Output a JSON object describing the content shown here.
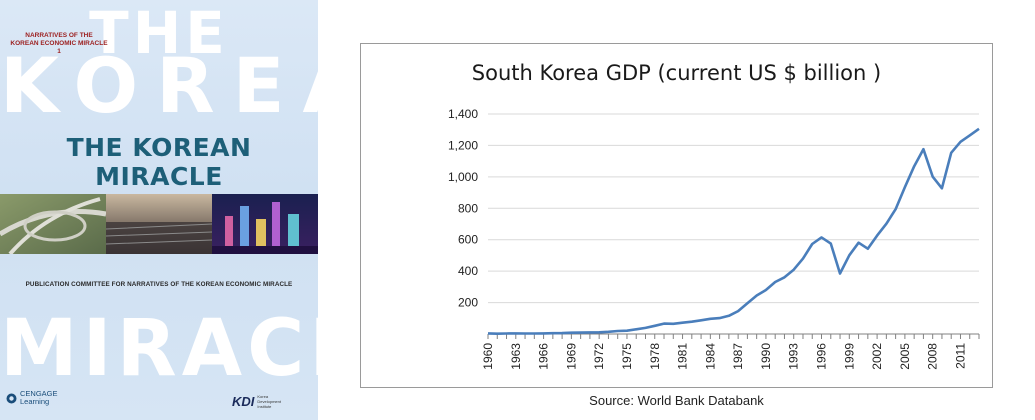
{
  "cover": {
    "big_the": "THE",
    "big_korean": "KOREAN",
    "series_line1": "NARRATIVES OF THE",
    "series_line2": "KOREAN ECONOMIC MIRACLE 1",
    "title": "THE KOREAN MIRACLE",
    "committee": "PUBLICATION COMMITTEE FOR NARRATIVES OF THE KOREAN ECONOMIC MIRACLE",
    "big_miracle": "MIRACLE",
    "publisher_line1": "CENGAGE",
    "publisher_line2": "Learning",
    "kdi_logo": "KDI",
    "kdi_sub": "Korea Development Institute"
  },
  "chart_data": {
    "type": "line",
    "title": "South Korea GDP (current US $ billion )",
    "xlabel": "",
    "ylabel": "",
    "ylim": [
      0,
      1400
    ],
    "yticks": [
      0,
      200,
      400,
      600,
      800,
      1000,
      1200,
      1400
    ],
    "ytick_labels": [
      "",
      "200",
      "400",
      "600",
      "800",
      "1,000",
      "1,200",
      "1,400"
    ],
    "xticks": [
      "1960",
      "1963",
      "1966",
      "1969",
      "1972",
      "1975",
      "1978",
      "1981",
      "1984",
      "1987",
      "1990",
      "1993",
      "1996",
      "1999",
      "2002",
      "2005",
      "2008",
      "2011"
    ],
    "grid": "horizontal",
    "series_color": "#4a7ebb",
    "x": [
      1960,
      1961,
      1962,
      1963,
      1964,
      1965,
      1966,
      1967,
      1968,
      1969,
      1970,
      1971,
      1972,
      1973,
      1974,
      1975,
      1976,
      1977,
      1978,
      1979,
      1980,
      1981,
      1982,
      1983,
      1984,
      1985,
      1986,
      1987,
      1988,
      1989,
      1990,
      1991,
      1992,
      1993,
      1994,
      1995,
      1996,
      1997,
      1998,
      1999,
      2000,
      2001,
      2002,
      2003,
      2004,
      2005,
      2006,
      2007,
      2008,
      2009,
      2010,
      2011,
      2012,
      2013
    ],
    "values": [
      4,
      2,
      3,
      4,
      3,
      3,
      4,
      5,
      6,
      8,
      9,
      10,
      11,
      14,
      19,
      21,
      30,
      39,
      52,
      66,
      65,
      72,
      78,
      87,
      97,
      101,
      116,
      146,
      196,
      245,
      280,
      331,
      361,
      409,
      480,
      573,
      615,
      575,
      385,
      501,
      581,
      543,
      626,
      702,
      794,
      935,
      1068,
      1176,
      1001,
      927,
      1153,
      1223,
      1264,
      1306
    ]
  },
  "source": "Source: World Bank Databank"
}
